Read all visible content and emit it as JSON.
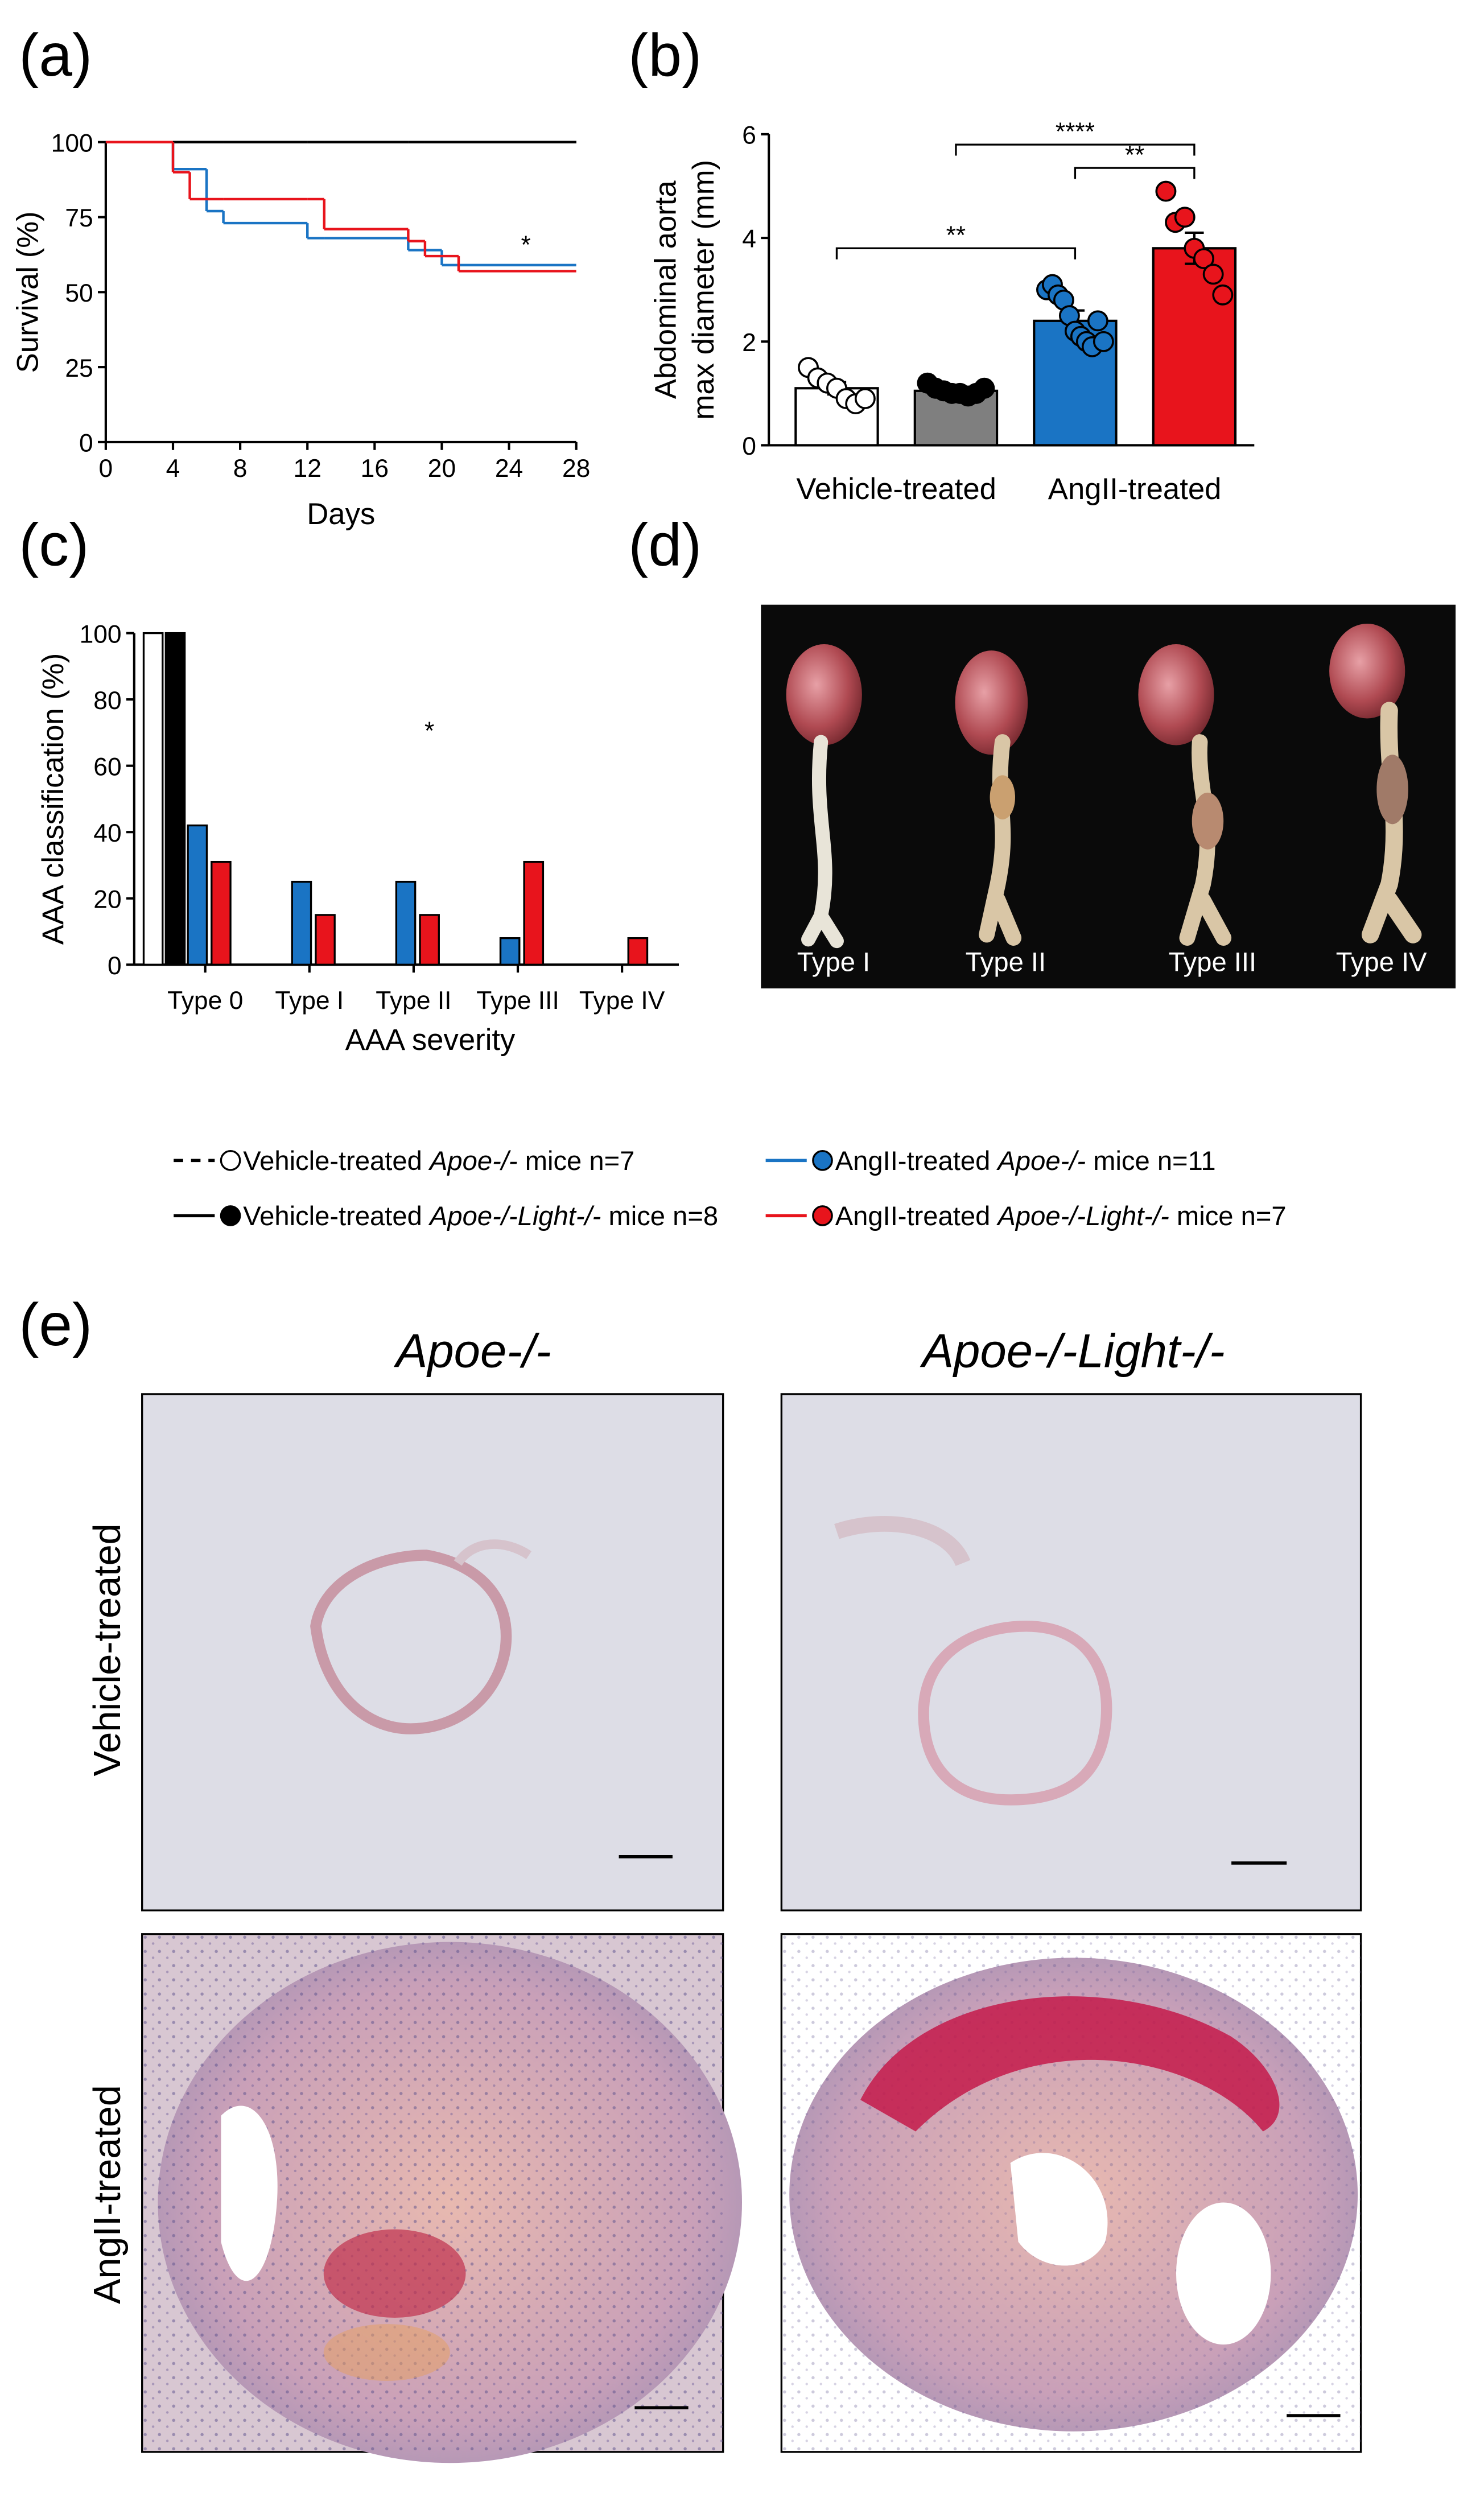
{
  "panel_labels": [
    "(a)",
    "(b)",
    "(c)",
    "(d)",
    "(e)"
  ],
  "chart_data": [
    {
      "type": "step",
      "xlabel": "Days",
      "ylabel": "Survival (%)",
      "x": [
        0,
        4,
        5,
        6,
        7,
        12,
        13,
        18,
        19,
        20,
        21,
        28
      ],
      "series": [
        {
          "color": "#000000",
          "dash": false,
          "values": [
            100,
            100,
            100,
            100,
            100,
            100,
            100,
            100,
            100,
            100,
            100,
            100
          ]
        },
        {
          "color": "#000000",
          "dash": true,
          "values": [
            100,
            100,
            100,
            100,
            100,
            100,
            100,
            100,
            100,
            100,
            100,
            100
          ]
        },
        {
          "color": "#1a74c4",
          "dash": false,
          "values": [
            100,
            91,
            91,
            77,
            73,
            68,
            68,
            64,
            64,
            59,
            59,
            59
          ]
        },
        {
          "color": "#e8141c",
          "dash": false,
          "values": [
            100,
            90,
            81,
            81,
            81,
            81,
            71,
            67,
            62,
            62,
            57,
            57
          ]
        }
      ],
      "xlim": [
        0,
        28
      ],
      "xticks": [
        0,
        4,
        8,
        12,
        16,
        20,
        24,
        28
      ],
      "ylim": [
        0,
        100
      ],
      "yticks": [
        0,
        25,
        50,
        75,
        100
      ],
      "annotations": [
        {
          "text": "*",
          "x": 25,
          "y": 63
        }
      ]
    },
    {
      "type": "bar",
      "ylabel": [
        "Abdominal aorta",
        "max diameter (mm)"
      ],
      "categories": [
        null,
        null,
        null,
        null
      ],
      "values": [
        1.1,
        1.05,
        2.4,
        3.8
      ],
      "errors": [
        0.12,
        0.05,
        0.2,
        0.3
      ],
      "colors": [
        "#ffffff",
        "#7f7f7f",
        "#1a74c4",
        "#e8141c"
      ],
      "point_colors": [
        "#ffffff",
        "#000000",
        "#1a74c4",
        "#e8141c"
      ],
      "points": [
        [
          1.5,
          1.3,
          1.2,
          1.1,
          0.9,
          0.8,
          0.9
        ],
        [
          1.2,
          1.1,
          1.05,
          1.0,
          1.0,
          0.95,
          1.0,
          1.1
        ],
        [
          3.0,
          3.1,
          2.9,
          2.8,
          2.5,
          2.2,
          2.1,
          2.0,
          1.9,
          2.4,
          2.0
        ],
        [
          4.9,
          4.3,
          4.4,
          3.8,
          3.6,
          3.3,
          2.9
        ]
      ],
      "groups": [
        {
          "label": "Vehicle-treated",
          "span": [
            0,
            1
          ]
        },
        {
          "label": "AngII-treated",
          "span": [
            2,
            3
          ]
        }
      ],
      "brackets": [
        {
          "text": "**",
          "from": 0,
          "to": 2,
          "y": 3.8
        },
        {
          "text": "****",
          "from": 1,
          "to": 3,
          "y": 5.8
        },
        {
          "text": "**",
          "from": 2,
          "to": 3,
          "y": 5.35
        }
      ],
      "ylim": [
        0,
        6
      ],
      "yticks": [
        0,
        2,
        4,
        6
      ]
    },
    {
      "type": "grouped-bar",
      "xlabel": "AAA severity",
      "ylabel": "AAA classification (%)",
      "categories": [
        "Type 0",
        "Type I",
        "Type II",
        "Type III",
        "Type IV"
      ],
      "series": [
        {
          "color": "#ffffff",
          "values": [
            100,
            0,
            0,
            0,
            0
          ]
        },
        {
          "color": "#000000",
          "values": [
            100,
            0,
            0,
            0,
            0
          ]
        },
        {
          "color": "#1a74c4",
          "values": [
            42,
            25,
            25,
            8,
            0
          ]
        },
        {
          "color": "#e8141c",
          "values": [
            31,
            15,
            15,
            31,
            8
          ]
        }
      ],
      "ylim": [
        0,
        100
      ],
      "yticks": [
        0,
        20,
        40,
        60,
        80,
        100
      ],
      "annotations": [
        {
          "text": "*",
          "category": 2,
          "y": 68
        }
      ]
    }
  ],
  "photo_d": {
    "labels": [
      "Type I",
      "Type II",
      "Type III",
      "Type IV"
    ]
  },
  "legend": [
    {
      "pre": "Vehicle-treated ",
      "italic": "Apoe-/-",
      "post": " mice n=7",
      "color": "#000000",
      "dash": true,
      "fill": "#ffffff"
    },
    {
      "pre": "Vehicle-treated ",
      "italic": "Apoe-/-Light-/-",
      "post": " mice n=8",
      "color": "#000000",
      "dash": false,
      "fill": "#000000"
    },
    {
      "pre": "AngII-treated ",
      "italic": "Apoe-/-",
      "post": " mice n=11",
      "color": "#1a74c4",
      "dash": false,
      "fill": "#1a74c4"
    },
    {
      "pre": "AngII-treated ",
      "italic": "Apoe-/-Light-/-",
      "post": " mice n=7",
      "color": "#e8141c",
      "dash": false,
      "fill": "#e8141c"
    }
  ],
  "histology": {
    "columns": [
      "Apoe-/-",
      "Apoe-/-Light-/-"
    ],
    "rows": [
      "Vehicle-treated",
      "AngII-treated"
    ]
  }
}
